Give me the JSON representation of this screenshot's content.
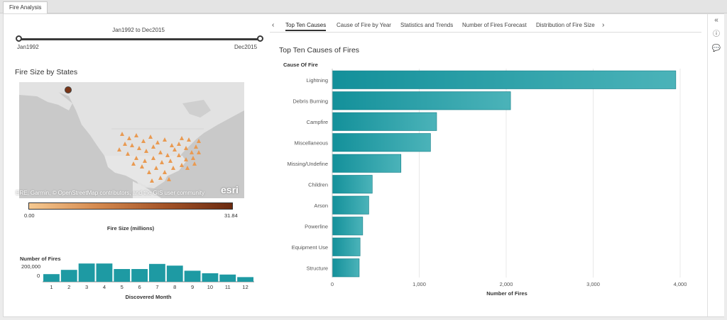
{
  "app_tab": "Fire Analysis",
  "slider": {
    "title": "Jan1992 to Dec2015",
    "min_label": "Jan1992",
    "max_label": "Dec2015"
  },
  "map_section": {
    "title": "Fire Size by States",
    "attribution": "ERE, Garmin, © OpenStreetMap contributors, and the GIS user community",
    "esri_logo": "esri",
    "legend": {
      "min": "0.00",
      "max": "31.84",
      "label": "Fire Size (millions)"
    }
  },
  "monthly_chart": {
    "type": "bar",
    "title": "Number of Fires",
    "xlabel": "Discovered Month",
    "y_ticks": [
      "200,000",
      "0"
    ],
    "ylim": [
      0,
      250000
    ],
    "categories": [
      "1",
      "2",
      "3",
      "4",
      "5",
      "6",
      "7",
      "8",
      "9",
      "10",
      "11",
      "12"
    ],
    "values": [
      90000,
      140000,
      215000,
      215000,
      150000,
      150000,
      210000,
      190000,
      130000,
      100000,
      85000,
      55000
    ],
    "color": "#1e9aa3"
  },
  "right_tabs": {
    "left_arrow": "‹",
    "right_arrow": "›",
    "items": [
      "Top Ten Causes",
      "Cause of Fire by Year",
      "Statistics and Trends",
      "Number of Fires Forecast",
      "Distribution of Fire Size"
    ],
    "active": 0
  },
  "rail": {
    "collapse": "«",
    "info": "ⓘ",
    "comment": "💬"
  },
  "chart_data": {
    "type": "bar",
    "orientation": "horizontal",
    "title": "Top Ten Causes of Fires",
    "category_axis_title": "Cause Of Fire",
    "xlabel": "Number of Fires",
    "categories": [
      "Lightning",
      "Debris Burning",
      "Campfire",
      "Miscellaneous",
      "Missing/Undefine",
      "Children",
      "Arson",
      "Powerline",
      "Equipment Use",
      "Structure"
    ],
    "values": [
      3950,
      2050,
      1200,
      1130,
      790,
      460,
      420,
      350,
      320,
      310
    ],
    "xlim": [
      0,
      4000
    ],
    "x_ticks": [
      0,
      1000,
      2000,
      3000,
      4000
    ],
    "x_tick_labels": [
      "0",
      "1,000",
      "2,000",
      "3,000",
      "4,000"
    ],
    "grid": true,
    "color": "#1e9aa3"
  }
}
